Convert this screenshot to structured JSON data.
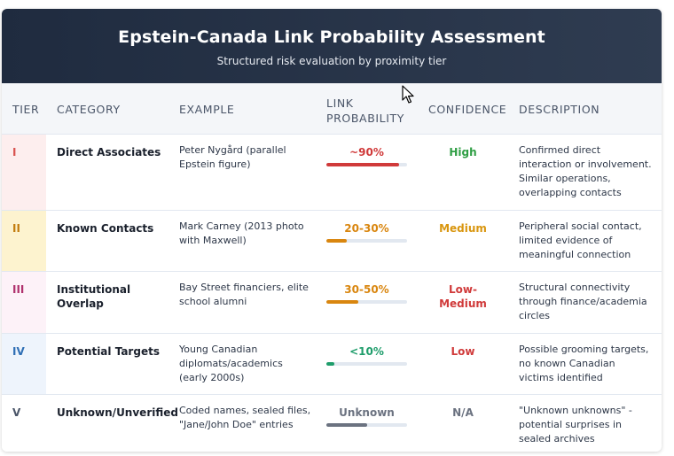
{
  "header": {
    "title": "Epstein-Canada Link Probability Assessment",
    "subtitle": "Structured risk evaluation by proximity tier"
  },
  "columns": {
    "tier": "TIER",
    "category": "CATEGORY",
    "example": "EXAMPLE",
    "link_probability_line1": "LINK",
    "link_probability_line2": "PROBABILITY",
    "confidence": "CONFIDENCE",
    "description": "DESCRIPTION"
  },
  "rows": [
    {
      "tier": "I",
      "category": "Direct Associates",
      "example": "Peter Nygård (parallel Epstein figure)",
      "probability": "~90%",
      "probability_fill": 0.9,
      "confidence": "High",
      "description": "Confirmed direct interaction or involvement. Similar operations, overlapping contacts",
      "tier_color": "#d9534f",
      "tier_bg": "#fdeeee",
      "prob_color": "#d03a3a",
      "conf_color": "#2f9e44"
    },
    {
      "tier": "II",
      "category": "Known Contacts",
      "example": "Mark Carney (2013 photo with Maxwell)",
      "probability": "20-30%",
      "probability_fill": 0.25,
      "confidence": "Medium",
      "description": "Peripheral social contact, limited evidence of meaningful connection",
      "tier_color": "#c27c0e",
      "tier_bg": "#fdf3cf",
      "prob_color": "#d9860f",
      "conf_color": "#d9960f"
    },
    {
      "tier": "III",
      "category": "Institutional Overlap",
      "example": "Bay Street financiers, elite school alumni",
      "probability": "30-50%",
      "probability_fill": 0.4,
      "confidence": "Low-Medium",
      "description": "Structural connectivity through finance/academia circles",
      "tier_color": "#b0326e",
      "tier_bg": "#fdf2f8",
      "prob_color": "#d9860f",
      "conf_color": "#d03a3a"
    },
    {
      "tier": "IV",
      "category": "Potential Targets",
      "example": "Young Canadian diplomats/academics (early 2000s)",
      "probability": "<10%",
      "probability_fill": 0.1,
      "confidence": "Low",
      "description": "Possible grooming targets, no known Canadian victims identified",
      "tier_color": "#2f6fb5",
      "tier_bg": "#eef4fc",
      "prob_color": "#1f9d6b",
      "conf_color": "#d03a3a"
    },
    {
      "tier": "V",
      "category": "Unknown/Unverified",
      "example": "Coded names, sealed files, \"Jane/John Doe\" entries",
      "probability": "Unknown",
      "probability_fill": 0.5,
      "confidence": "N/A",
      "description": "\"Unknown unknowns\" - potential surprises in sealed archives",
      "tier_color": "#4a5568",
      "tier_bg": "#ffffff",
      "prob_color": "#6b7280",
      "conf_color": "#6b7280"
    }
  ]
}
